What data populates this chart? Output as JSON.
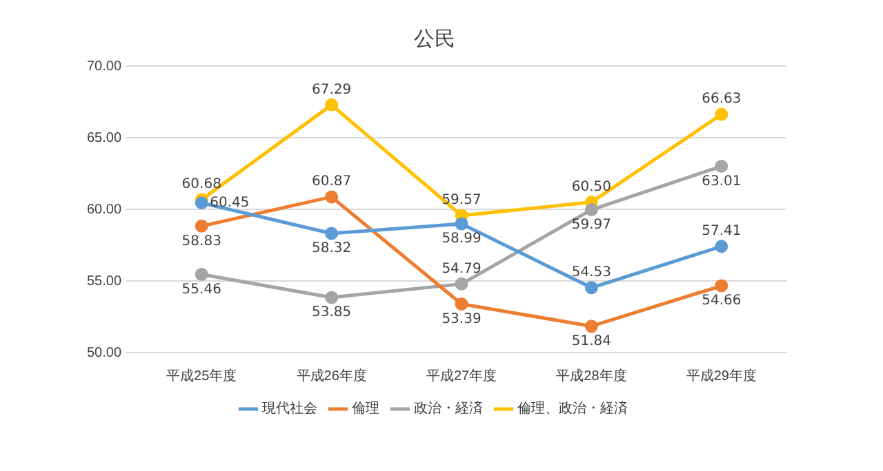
{
  "chart_data": {
    "type": "line",
    "title": "公民",
    "categories": [
      "平成25年度",
      "平成26年度",
      "平成27年度",
      "平成28年度",
      "平成29年度"
    ],
    "series": [
      {
        "name": "現代社会",
        "color": "#5b9bd5",
        "values": [
          60.45,
          58.32,
          58.99,
          54.53,
          57.41
        ],
        "value_labels": [
          "60.45",
          "58.32",
          "58.99",
          "54.53",
          "57.41"
        ]
      },
      {
        "name": "倫理",
        "color": "#ed7d31",
        "values": [
          58.83,
          60.87,
          53.39,
          51.84,
          54.66
        ],
        "value_labels": [
          "58.83",
          "60.87",
          "53.39",
          "51.84",
          "54.66"
        ]
      },
      {
        "name": "政治・経済",
        "color": "#a5a5a5",
        "values": [
          55.46,
          53.85,
          54.79,
          59.97,
          63.01
        ],
        "value_labels": [
          "55.46",
          "53.85",
          "54.79",
          "59.97",
          "63.01"
        ]
      },
      {
        "name": "倫理、政治・経済",
        "color": "#ffc000",
        "values": [
          60.68,
          67.29,
          59.57,
          60.5,
          66.63
        ],
        "value_labels": [
          "60.68",
          "67.29",
          "59.57",
          "60.50",
          "66.63"
        ]
      }
    ],
    "ylim": [
      50,
      70
    ],
    "yticks": [
      {
        "value": 50,
        "label": "50.00"
      },
      {
        "value": 55,
        "label": "55.00"
      },
      {
        "value": 60,
        "label": "60.00"
      },
      {
        "value": 65,
        "label": "65.00"
      },
      {
        "value": 70,
        "label": "70.00"
      }
    ],
    "grid": "y",
    "legend": "bottom",
    "marker": "circle",
    "line_style": "solid"
  }
}
